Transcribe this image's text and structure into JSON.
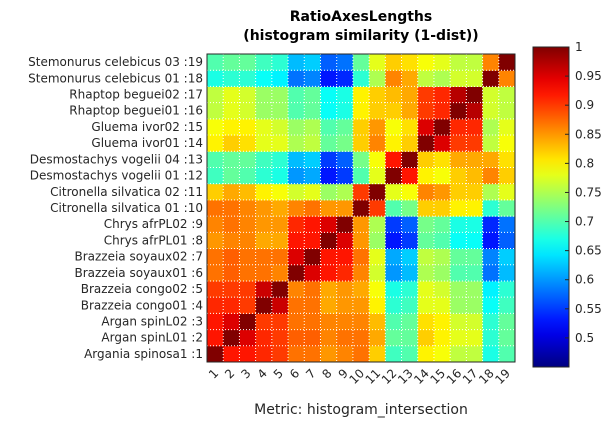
{
  "chart_data": {
    "type": "heatmap",
    "title": "RatioAxesLengths",
    "subtitle": "(histogram similarity (1-dist))",
    "xlabel": "Metric: histogram_intersection",
    "ylabel": "",
    "x_tick_labels": [
      "1",
      "2",
      "3",
      "4",
      "5",
      "6",
      "7",
      "8",
      "9",
      "10",
      "11",
      "12",
      "13",
      "14",
      "15",
      "16",
      "17",
      "18",
      "19"
    ],
    "y_tick_labels": [
      "Argania spinosa1 :1",
      "Argan spinL01 :2",
      "Argan spinL02 :3",
      "Brazzeia congo01 :4",
      "Brazzeia congo02 :5",
      "Brazzeia soyaux01 :6",
      "Brazzeia soyaux02 :7",
      "Chrys afrPL01 :8",
      "Chrys afrPL02 :9",
      "Citronella silvatica 01 :10",
      "Citronella silvatica 02 :11",
      "Desmostachys vogelii 01 :12",
      "Desmostachys vogelii 04 :13",
      "Gluema ivor01 :14",
      "Gluema ivor02 :15",
      "Rhaptop beguei01 :16",
      "Rhaptop beguei02 :17",
      "Stemonurus celebicus 01 :18",
      "Stemonurus celebicus 03 :19"
    ],
    "colormap": "jet",
    "clim": [
      0.45,
      1.0
    ],
    "colorbar_ticks": [
      0.5,
      0.55,
      0.6,
      0.65,
      0.7,
      0.75,
      0.8,
      0.85,
      0.9,
      0.95,
      1
    ],
    "colorbar_tick_labels": [
      "0.5",
      "0.55",
      "0.6",
      "0.65",
      "0.7",
      "0.75",
      "0.8",
      "0.85",
      "0.9",
      "0.95",
      "1"
    ],
    "grid": "dotted",
    "matrix": [
      [
        1.0,
        0.92,
        0.92,
        0.91,
        0.9,
        0.87,
        0.87,
        0.85,
        0.86,
        0.87,
        0.82,
        0.69,
        0.7,
        0.8,
        0.79,
        0.76,
        0.76,
        0.67,
        0.7
      ],
      [
        0.92,
        1.0,
        0.95,
        0.91,
        0.9,
        0.88,
        0.88,
        0.86,
        0.87,
        0.87,
        0.84,
        0.71,
        0.71,
        0.82,
        0.8,
        0.78,
        0.78,
        0.68,
        0.71
      ],
      [
        0.92,
        0.95,
        1.0,
        0.9,
        0.9,
        0.87,
        0.87,
        0.86,
        0.86,
        0.86,
        0.83,
        0.7,
        0.71,
        0.81,
        0.8,
        0.77,
        0.77,
        0.68,
        0.71
      ],
      [
        0.91,
        0.91,
        0.9,
        1.0,
        0.96,
        0.87,
        0.87,
        0.84,
        0.85,
        0.85,
        0.8,
        0.68,
        0.69,
        0.78,
        0.78,
        0.74,
        0.74,
        0.66,
        0.69
      ],
      [
        0.9,
        0.9,
        0.9,
        0.96,
        1.0,
        0.86,
        0.87,
        0.84,
        0.85,
        0.84,
        0.79,
        0.67,
        0.68,
        0.78,
        0.77,
        0.74,
        0.74,
        0.65,
        0.68
      ],
      [
        0.87,
        0.88,
        0.87,
        0.87,
        0.86,
        1.0,
        0.95,
        0.92,
        0.91,
        0.86,
        0.77,
        0.6,
        0.62,
        0.75,
        0.74,
        0.7,
        0.7,
        0.58,
        0.62
      ],
      [
        0.87,
        0.88,
        0.87,
        0.87,
        0.87,
        0.95,
        1.0,
        0.92,
        0.92,
        0.87,
        0.78,
        0.61,
        0.63,
        0.76,
        0.75,
        0.71,
        0.71,
        0.59,
        0.63
      ],
      [
        0.85,
        0.86,
        0.86,
        0.84,
        0.84,
        0.92,
        0.92,
        1.0,
        0.95,
        0.85,
        0.74,
        0.53,
        0.55,
        0.71,
        0.7,
        0.66,
        0.66,
        0.53,
        0.57
      ],
      [
        0.86,
        0.87,
        0.86,
        0.85,
        0.85,
        0.91,
        0.92,
        0.95,
        1.0,
        0.85,
        0.75,
        0.55,
        0.57,
        0.72,
        0.71,
        0.67,
        0.67,
        0.54,
        0.58
      ],
      [
        0.87,
        0.87,
        0.86,
        0.85,
        0.84,
        0.86,
        0.87,
        0.85,
        0.85,
        1.0,
        0.9,
        0.7,
        0.72,
        0.82,
        0.82,
        0.8,
        0.8,
        0.68,
        0.71
      ],
      [
        0.82,
        0.84,
        0.83,
        0.8,
        0.79,
        0.77,
        0.78,
        0.74,
        0.75,
        0.9,
        1.0,
        0.78,
        0.79,
        0.86,
        0.85,
        0.82,
        0.82,
        0.75,
        0.78
      ],
      [
        0.69,
        0.71,
        0.7,
        0.68,
        0.67,
        0.6,
        0.61,
        0.53,
        0.55,
        0.7,
        0.78,
        1.0,
        0.92,
        0.8,
        0.79,
        0.82,
        0.83,
        0.86,
        0.82
      ],
      [
        0.7,
        0.71,
        0.71,
        0.69,
        0.68,
        0.62,
        0.63,
        0.55,
        0.57,
        0.72,
        0.79,
        0.92,
        1.0,
        0.82,
        0.81,
        0.84,
        0.84,
        0.84,
        0.81
      ],
      [
        0.8,
        0.82,
        0.81,
        0.78,
        0.78,
        0.75,
        0.76,
        0.71,
        0.72,
        0.82,
        0.86,
        0.8,
        0.82,
        1.0,
        0.95,
        0.9,
        0.9,
        0.76,
        0.79
      ],
      [
        0.79,
        0.8,
        0.8,
        0.78,
        0.77,
        0.74,
        0.75,
        0.7,
        0.71,
        0.82,
        0.85,
        0.79,
        0.81,
        0.95,
        1.0,
        0.91,
        0.91,
        0.75,
        0.78
      ],
      [
        0.76,
        0.78,
        0.77,
        0.74,
        0.74,
        0.7,
        0.71,
        0.66,
        0.67,
        0.8,
        0.82,
        0.82,
        0.84,
        0.9,
        0.91,
        1.0,
        0.97,
        0.77,
        0.76
      ],
      [
        0.76,
        0.78,
        0.77,
        0.74,
        0.74,
        0.7,
        0.71,
        0.66,
        0.67,
        0.8,
        0.82,
        0.83,
        0.84,
        0.9,
        0.91,
        0.97,
        1.0,
        0.77,
        0.76
      ],
      [
        0.67,
        0.68,
        0.68,
        0.66,
        0.65,
        0.58,
        0.59,
        0.53,
        0.54,
        0.68,
        0.75,
        0.86,
        0.84,
        0.76,
        0.75,
        0.77,
        0.77,
        1.0,
        0.86
      ],
      [
        0.7,
        0.71,
        0.71,
        0.69,
        0.68,
        0.62,
        0.63,
        0.57,
        0.58,
        0.71,
        0.78,
        0.82,
        0.81,
        0.79,
        0.78,
        0.76,
        0.76,
        0.86,
        1.0
      ]
    ]
  }
}
